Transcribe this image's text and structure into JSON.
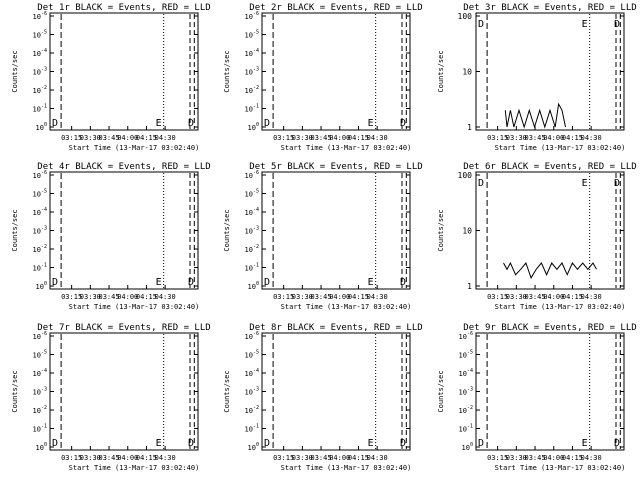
{
  "figure": {
    "background": "#ffffff",
    "foreground": "#000000"
  },
  "chart_data": [
    {
      "id": "det1r",
      "type": "line",
      "title": "Det 1r BLACK = Events, RED = LLD",
      "xlabel": "Start Time (13-Mar-17 03:02:40)",
      "ylabel": "Counts/sec",
      "scale": "log-small",
      "yticks": [
        "10^0",
        "10^-1",
        "10^-2",
        "10^-3",
        "10^-4",
        "10^-5",
        "10^-6"
      ],
      "xticks": [
        "03:15",
        "03:30",
        "03:45",
        "04:00",
        "04:15",
        "04:30"
      ],
      "markers": [
        "D",
        "E",
        "D"
      ],
      "series": []
    },
    {
      "id": "det2r",
      "type": "line",
      "title": "Det 2r BLACK = Events, RED = LLD",
      "xlabel": "Start Time (13-Mar-17 03:02:40)",
      "ylabel": "Counts/sec",
      "scale": "log-small",
      "yticks": [
        "10^0",
        "10^-1",
        "10^-2",
        "10^-3",
        "10^-4",
        "10^-5",
        "10^-6"
      ],
      "xticks": [
        "03:15",
        "03:30",
        "03:45",
        "04:00",
        "04:15",
        "04:30"
      ],
      "markers": [
        "D",
        "E",
        "D"
      ],
      "series": []
    },
    {
      "id": "det3r",
      "type": "line",
      "title": "Det 3r BLACK = Events, RED = LLD",
      "xlabel": "Start Time (13-Mar-17 03:02:40)",
      "ylabel": "Counts/sec",
      "scale": "log-big",
      "yticks": [
        "1",
        "10",
        "100"
      ],
      "xticks": [
        "03:15",
        "03:30",
        "03:45",
        "04:00",
        "04:15",
        "04:30"
      ],
      "markers": [
        "D",
        "E",
        "D"
      ],
      "series": [
        {
          "color": "#000000",
          "x_minutes": [
            17,
            18,
            20,
            22,
            25,
            28,
            31,
            34,
            37,
            40,
            43,
            46,
            48,
            50,
            52
          ],
          "y": [
            2,
            1,
            2,
            1,
            2,
            1,
            2,
            1,
            2,
            1,
            2,
            1,
            2.6,
            2,
            1
          ]
        }
      ]
    },
    {
      "id": "det4r",
      "type": "line",
      "title": "Det 4r BLACK = Events, RED = LLD",
      "xlabel": "Start Time (13-Mar-17 03:02:40)",
      "ylabel": "Counts/sec",
      "scale": "log-small",
      "yticks": [
        "10^0",
        "10^-1",
        "10^-2",
        "10^-3",
        "10^-4",
        "10^-5",
        "10^-6"
      ],
      "xticks": [
        "03:15",
        "03:30",
        "03:45",
        "04:00",
        "04:15",
        "04:30"
      ],
      "markers": [
        "D",
        "E",
        "D"
      ],
      "series": []
    },
    {
      "id": "det5r",
      "type": "line",
      "title": "Det 5r BLACK = Events, RED = LLD",
      "xlabel": "Start Time (13-Mar-17 03:02:40)",
      "ylabel": "Counts/sec",
      "scale": "log-small",
      "yticks": [
        "10^0",
        "10^-1",
        "10^-2",
        "10^-3",
        "10^-4",
        "10^-5",
        "10^-6"
      ],
      "xticks": [
        "03:15",
        "03:30",
        "03:45",
        "04:00",
        "04:15",
        "04:30"
      ],
      "markers": [
        "D",
        "E",
        "D"
      ],
      "series": []
    },
    {
      "id": "det6r",
      "type": "line",
      "title": "Det 6r BLACK = Events, RED = LLD",
      "xlabel": "Start Time (13-Mar-17 03:02:40)",
      "ylabel": "Counts/sec",
      "scale": "log-big",
      "yticks": [
        "1",
        "10",
        "100"
      ],
      "xticks": [
        "03:15",
        "03:30",
        "03:45",
        "04:00",
        "04:15",
        "04:30"
      ],
      "markers": [
        "D",
        "E",
        "D"
      ],
      "series": [
        {
          "color": "#000000",
          "x_minutes": [
            16,
            18,
            20,
            23,
            26,
            29,
            32,
            35,
            38,
            41,
            44,
            47,
            50,
            53,
            56,
            59,
            62,
            65,
            68,
            70
          ],
          "y": [
            2.6,
            2,
            2.6,
            1.6,
            2,
            2.6,
            1.4,
            2,
            2.6,
            1.6,
            2.6,
            2,
            2.6,
            1.6,
            2.6,
            2,
            2.6,
            2,
            2.6,
            2
          ]
        }
      ]
    },
    {
      "id": "det7r",
      "type": "line",
      "title": "Det 7r BLACK = Events, RED = LLD",
      "xlabel": "Start Time (13-Mar-17 03:02:40)",
      "ylabel": "Counts/sec",
      "scale": "log-small",
      "yticks": [
        "10^0",
        "10^-1",
        "10^-2",
        "10^-3",
        "10^-4",
        "10^-5",
        "10^-6"
      ],
      "xticks": [
        "03:15",
        "03:30",
        "03:45",
        "04:00",
        "04:15",
        "04:30"
      ],
      "markers": [
        "D",
        "E",
        "D"
      ],
      "series": []
    },
    {
      "id": "det8r",
      "type": "line",
      "title": "Det 8r BLACK = Events, RED = LLD",
      "xlabel": "Start Time (13-Mar-17 03:02:40)",
      "ylabel": "Counts/sec",
      "scale": "log-small",
      "yticks": [
        "10^0",
        "10^-1",
        "10^-2",
        "10^-3",
        "10^-4",
        "10^-5",
        "10^-6"
      ],
      "xticks": [
        "03:15",
        "03:30",
        "03:45",
        "04:00",
        "04:15",
        "04:30"
      ],
      "markers": [
        "D",
        "E",
        "D"
      ],
      "series": []
    },
    {
      "id": "det9r",
      "type": "line",
      "title": "Det 9r BLACK = Events, RED = LLD",
      "xlabel": "Start Time (13-Mar-17 03:02:40)",
      "ylabel": "Counts/sec",
      "scale": "log-small",
      "yticks": [
        "10^0",
        "10^-1",
        "10^-2",
        "10^-3",
        "10^-4",
        "10^-5",
        "10^-6"
      ],
      "xticks": [
        "03:15",
        "03:30",
        "03:45",
        "04:00",
        "04:15",
        "04:30"
      ],
      "markers": [
        "D",
        "E",
        "D"
      ],
      "series": []
    }
  ]
}
